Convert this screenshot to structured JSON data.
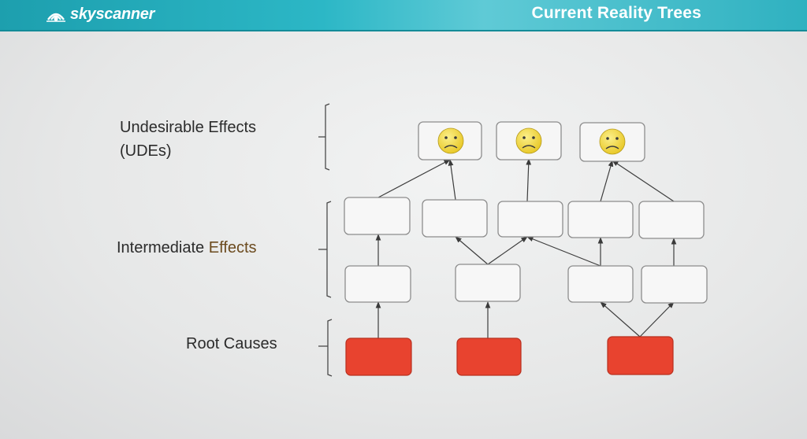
{
  "header": {
    "logo_text": "skyscanner",
    "logo_icon": "cloud-sunrise-icon",
    "title": "Current Reality Trees"
  },
  "labels": {
    "undesirable_effects_line1": "Undesirable Effects",
    "undesirable_effects_line2": "(UDEs)",
    "intermediate_effects_plain": "Intermediate ",
    "intermediate_effects_accent": "Effects",
    "root_causes": "Root Causes"
  },
  "colors": {
    "header": "#2cb7c6",
    "root_cause_fill": "#e8432f",
    "intermediate_fill": "#f7f7f7",
    "ude_face": "#f5e049",
    "accent_text": "#6b4a1e"
  },
  "diagram": {
    "node_groups": {
      "undesirable_effects": 3,
      "intermediate_effects_upper": 5,
      "intermediate_effects_lower": 4,
      "root_causes": 3
    },
    "ude_icon": "sad-face-icon"
  }
}
